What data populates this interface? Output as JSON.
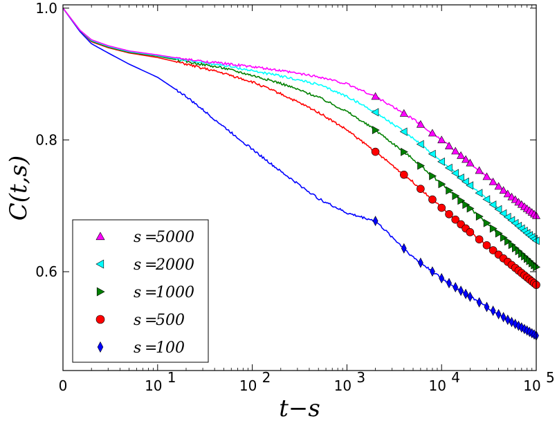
{
  "chart_data": {
    "type": "line",
    "title": "",
    "xlabel": "t−s",
    "ylabel": "C(t,s)",
    "xscale": "log",
    "xlim": [
      1,
      100000
    ],
    "ylim": [
      0.45,
      1.005
    ],
    "x_ticks": [
      {
        "value": 1,
        "label": "0"
      },
      {
        "value": 10,
        "base": "10",
        "exp": "1"
      },
      {
        "value": 100,
        "base": "10",
        "exp": "2"
      },
      {
        "value": 1000,
        "base": "10",
        "exp": "3"
      },
      {
        "value": 10000,
        "base": "10",
        "exp": "4"
      },
      {
        "value": 100000,
        "base": "10",
        "exp": "5"
      }
    ],
    "y_ticks": [
      {
        "value": 0.6,
        "label": "0.6"
      },
      {
        "value": 0.8,
        "label": "0.8"
      },
      {
        "value": 1.0,
        "label": "1.0"
      }
    ],
    "legend_position": "bottom-left",
    "series": [
      {
        "name": "s = 5000",
        "label_s": "s",
        "label_eq": "=",
        "label_val": "5000",
        "color": "#ff00ff",
        "marker": "triangle-up",
        "points": [
          [
            1,
            1.0
          ],
          [
            1.5,
            0.967
          ],
          [
            2,
            0.952
          ],
          [
            3,
            0.943
          ],
          [
            5,
            0.935
          ],
          [
            10,
            0.929
          ],
          [
            20,
            0.922
          ],
          [
            50,
            0.916
          ],
          [
            100,
            0.911
          ],
          [
            200,
            0.905
          ],
          [
            500,
            0.896
          ],
          [
            1000,
            0.885
          ],
          [
            2000,
            0.866
          ],
          [
            5000,
            0.832
          ],
          [
            10000,
            0.8
          ],
          [
            20000,
            0.765
          ],
          [
            50000,
            0.718
          ],
          [
            100000,
            0.685
          ]
        ],
        "marker_x": [
          2000,
          4000,
          6000,
          8000,
          10000,
          12000,
          14000,
          16000,
          18000,
          20000,
          25000,
          30000,
          35000,
          40000,
          45000,
          50000,
          55000,
          60000,
          65000,
          70000,
          75000,
          80000,
          85000,
          90000,
          95000,
          100000
        ]
      },
      {
        "name": "s = 2000",
        "label_s": "s",
        "label_eq": "=",
        "label_val": "2000",
        "color": "#00ffff",
        "marker": "triangle-left",
        "points": [
          [
            1,
            1.0
          ],
          [
            1.5,
            0.967
          ],
          [
            2,
            0.951
          ],
          [
            3,
            0.942
          ],
          [
            5,
            0.934
          ],
          [
            10,
            0.928
          ],
          [
            20,
            0.921
          ],
          [
            50,
            0.913
          ],
          [
            100,
            0.905
          ],
          [
            200,
            0.897
          ],
          [
            500,
            0.884
          ],
          [
            1000,
            0.866
          ],
          [
            2000,
            0.842
          ],
          [
            5000,
            0.803
          ],
          [
            10000,
            0.767
          ],
          [
            20000,
            0.731
          ],
          [
            50000,
            0.683
          ],
          [
            100000,
            0.647
          ]
        ],
        "marker_x": [
          2000,
          4000,
          6000,
          8000,
          10000,
          12000,
          14000,
          16000,
          18000,
          20000,
          25000,
          30000,
          35000,
          40000,
          45000,
          50000,
          55000,
          60000,
          65000,
          70000,
          75000,
          80000,
          85000,
          90000,
          95000,
          100000
        ]
      },
      {
        "name": "s = 1000",
        "label_s": "s",
        "label_eq": "=",
        "label_val": "1000",
        "color": "#008000",
        "marker": "triangle-right",
        "points": [
          [
            1,
            1.0
          ],
          [
            1.5,
            0.967
          ],
          [
            2,
            0.95
          ],
          [
            3,
            0.941
          ],
          [
            5,
            0.933
          ],
          [
            10,
            0.927
          ],
          [
            20,
            0.919
          ],
          [
            50,
            0.909
          ],
          [
            100,
            0.898
          ],
          [
            200,
            0.886
          ],
          [
            500,
            0.865
          ],
          [
            1000,
            0.843
          ],
          [
            2000,
            0.815
          ],
          [
            5000,
            0.771
          ],
          [
            10000,
            0.733
          ],
          [
            20000,
            0.696
          ],
          [
            50000,
            0.646
          ],
          [
            100000,
            0.607
          ]
        ],
        "marker_x": [
          2000,
          4000,
          6000,
          8000,
          10000,
          12000,
          14000,
          16000,
          18000,
          20000,
          25000,
          30000,
          35000,
          40000,
          45000,
          50000,
          55000,
          60000,
          65000,
          70000,
          75000,
          80000,
          85000,
          90000,
          95000,
          100000
        ]
      },
      {
        "name": "s = 500",
        "label_s": "s",
        "label_eq": "=",
        "label_val": "500",
        "color": "#ff0000",
        "marker": "circle",
        "points": [
          [
            1,
            1.0
          ],
          [
            1.5,
            0.967
          ],
          [
            2,
            0.949
          ],
          [
            3,
            0.94
          ],
          [
            5,
            0.932
          ],
          [
            10,
            0.925
          ],
          [
            20,
            0.915
          ],
          [
            50,
            0.901
          ],
          [
            100,
            0.888
          ],
          [
            200,
            0.87
          ],
          [
            500,
            0.842
          ],
          [
            1000,
            0.815
          ],
          [
            2000,
            0.782
          ],
          [
            5000,
            0.736
          ],
          [
            10000,
            0.697
          ],
          [
            20000,
            0.66
          ],
          [
            50000,
            0.615
          ],
          [
            100000,
            0.58
          ]
        ],
        "marker_x": [
          2000,
          4000,
          6000,
          8000,
          10000,
          12000,
          14000,
          16000,
          18000,
          20000,
          25000,
          30000,
          35000,
          40000,
          45000,
          50000,
          55000,
          60000,
          65000,
          70000,
          75000,
          80000,
          85000,
          90000,
          95000,
          100000
        ]
      },
      {
        "name": "s = 100",
        "label_s": "s",
        "label_eq": "=",
        "label_val": "100",
        "color": "#0000ff",
        "marker": "diamond",
        "points": [
          [
            1,
            1.0
          ],
          [
            1.5,
            0.965
          ],
          [
            2,
            0.946
          ],
          [
            3,
            0.932
          ],
          [
            5,
            0.915
          ],
          [
            10,
            0.895
          ],
          [
            20,
            0.866
          ],
          [
            50,
            0.82
          ],
          [
            100,
            0.786
          ],
          [
            200,
            0.752
          ],
          [
            500,
            0.711
          ],
          [
            1000,
            0.689
          ],
          [
            2000,
            0.677
          ],
          [
            5000,
            0.622
          ],
          [
            10000,
            0.59
          ],
          [
            20000,
            0.562
          ],
          [
            50000,
            0.527
          ],
          [
            100000,
            0.503
          ]
        ],
        "marker_x": [
          2000,
          4000,
          6000,
          8000,
          10000,
          12000,
          14000,
          16000,
          18000,
          20000,
          25000,
          30000,
          35000,
          40000,
          45000,
          50000,
          55000,
          60000,
          65000,
          70000,
          75000,
          80000,
          85000,
          90000,
          95000,
          100000
        ]
      }
    ]
  }
}
